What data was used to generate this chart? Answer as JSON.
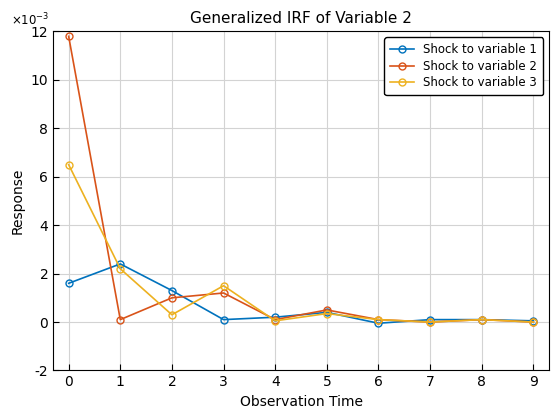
{
  "title": "Generalized IRF of Variable 2",
  "xlabel": "Observation Time",
  "ylabel": "Response",
  "x": [
    0,
    1,
    2,
    3,
    4,
    5,
    6,
    7,
    8,
    9
  ],
  "series": [
    {
      "label": "Shock to variable 1",
      "color": "#0072BD",
      "y": [
        0.0016,
        0.0024,
        0.0013,
        0.0001,
        0.0002,
        0.0004,
        -5e-05,
        0.0001,
        0.0001,
        5e-05
      ]
    },
    {
      "label": "Shock to variable 2",
      "color": "#D95319",
      "y": [
        0.0118,
        0.0001,
        0.001,
        0.0012,
        0.0001,
        0.0005,
        0.0001,
        0.0,
        0.0001,
        0.0
      ]
    },
    {
      "label": "Shock to variable 3",
      "color": "#EDB120",
      "y": [
        0.0065,
        0.0022,
        0.0003,
        0.0015,
        5e-05,
        0.00035,
        0.0001,
        0.0,
        0.0001,
        0.0
      ]
    }
  ],
  "ylim": [
    -0.002,
    0.012
  ],
  "xlim": [
    -0.3,
    9.3
  ],
  "ytick_values": [
    -0.002,
    0.0,
    0.002,
    0.004,
    0.006,
    0.008,
    0.01,
    0.012
  ],
  "ytick_labels": [
    "-2",
    "0",
    "2",
    "4",
    "6",
    "8",
    "10",
    "12"
  ],
  "xticks": [
    0,
    1,
    2,
    3,
    4,
    5,
    6,
    7,
    8,
    9
  ],
  "grid": true,
  "legend_loc": "upper right",
  "background_color": "#ffffff",
  "axes_bg_color": "#ffffff",
  "marker": "o",
  "marker_facecolor": "none",
  "marker_size": 5,
  "linewidth": 1.2,
  "title_fontsize": 11,
  "label_fontsize": 10,
  "tick_fontsize": 10,
  "legend_fontsize": 8.5
}
